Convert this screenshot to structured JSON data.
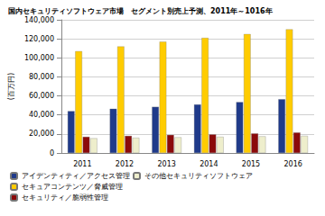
{
  "chart_data": {
    "type": "bar",
    "title": "国内セキュリティソフトウェア市場　セグメント別売上予測、2011年～1016年",
    "y_label": "(百万円)",
    "categories": [
      "2011",
      "2012",
      "2013",
      "2014",
      "2015",
      "2016"
    ],
    "series": [
      {
        "name": "アイデンティティ／アクセス管理",
        "color": "#1f3a8a",
        "values": [
          44000,
          46500,
          48500,
          51000,
          53500,
          56500
        ]
      },
      {
        "name": "セキュアコンテンツ／脅威管理",
        "color": "#ffcc00",
        "values": [
          107000,
          112000,
          117000,
          121000,
          125000,
          130000
        ]
      },
      {
        "name": "セキュリティ／脆弱性管理",
        "color": "#8b0a0a",
        "values": [
          17000,
          18000,
          19000,
          19500,
          20500,
          21500
        ]
      },
      {
        "name": "その他セキュリティソフトウェア",
        "color": "#eeeecc",
        "values": [
          15500,
          16000,
          16500,
          17000,
          17500,
          18000
        ]
      }
    ],
    "ylim": [
      0,
      140000
    ],
    "yticks": [
      0,
      {
        "value": 20000,
        "label": "20,000"
      },
      {
        "value": 40000,
        "label": "40,000"
      },
      {
        "value": 60000,
        "label": "60,000"
      },
      {
        "value": 80000,
        "label": "80,000"
      },
      {
        "value": 100000,
        "label": "100,000"
      },
      {
        "value": 120000,
        "label": "120,000"
      },
      {
        "value": 140000,
        "label": "140,000"
      }
    ],
    "grid": true,
    "legend": "bottom-left"
  }
}
